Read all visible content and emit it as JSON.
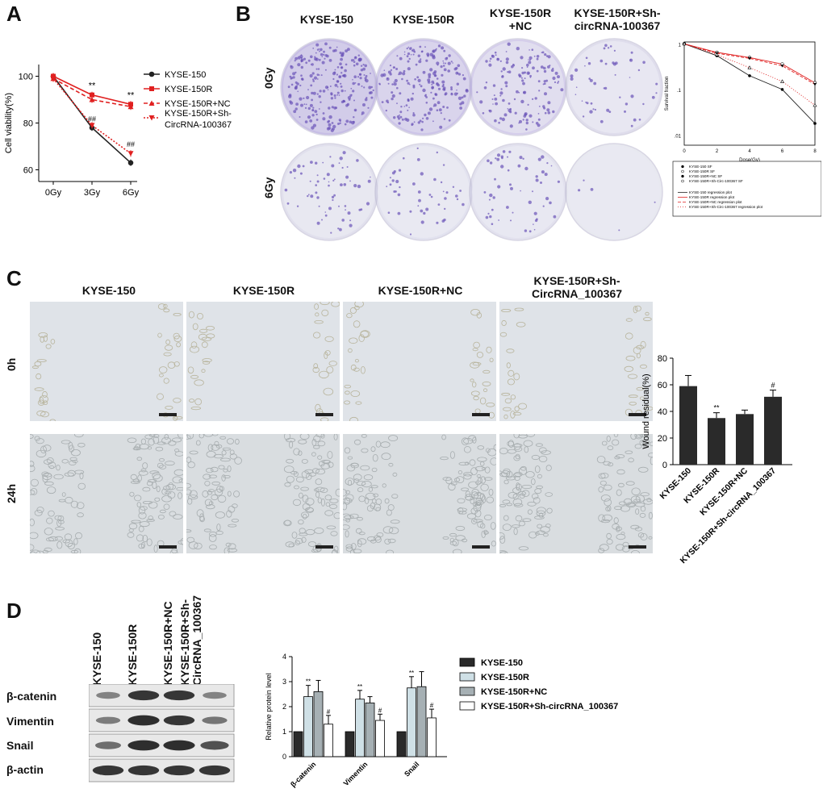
{
  "panels": {
    "a": "A",
    "b": "B",
    "c": "C",
    "d": "D"
  },
  "panel_a": {
    "chart_data": {
      "type": "line",
      "categories": [
        "0Gy",
        "3Gy",
        "6Gy"
      ],
      "ylabel": "Cell viability(%)",
      "ylim": [
        55,
        105
      ],
      "yticks": [
        "60",
        "80",
        "100"
      ],
      "series": [
        {
          "name": "KYSE-150",
          "values": [
            100,
            78,
            63
          ],
          "color": "#222222"
        },
        {
          "name": "KYSE-150R",
          "values": [
            100,
            92,
            88
          ],
          "color": "#e02020"
        },
        {
          "name": "KYSE-150R+NC",
          "values": [
            99,
            90,
            87
          ],
          "color": "#e02020"
        },
        {
          "name": "KYSE-150R+Sh-CircRNA-100367",
          "values": [
            99,
            79,
            67
          ],
          "color": "#e02020"
        }
      ],
      "annotations": [
        {
          "x": "3Gy",
          "text": "**"
        },
        {
          "x": "6Gy",
          "text": "**"
        },
        {
          "x": "3Gy",
          "text": "##"
        },
        {
          "x": "6Gy",
          "text": "##"
        }
      ],
      "legend": {
        "position": "right",
        "labels": [
          "KYSE-150",
          "KYSE-150R",
          "KYSE-150R+NC",
          "KYSE-150R+Sh-",
          "CircRNA-100367"
        ]
      }
    }
  },
  "panel_b": {
    "columns": [
      "KYSE-150",
      "KYSE-150R",
      "KYSE-150R",
      "+NC",
      "KYSE-150R+Sh-",
      "circRNA-100367"
    ],
    "rows": [
      "0Gy",
      "6Gy"
    ],
    "dishes": [
      {
        "density": 0.95,
        "tint": "#9b8ad0"
      },
      {
        "density": 0.8,
        "tint": "#a596d6"
      },
      {
        "density": 0.55,
        "tint": "#b3a7dc"
      },
      {
        "density": 0.2,
        "tint": "#c6c3de"
      },
      {
        "density": 0.25,
        "tint": "#c9c7e0"
      },
      {
        "density": 0.18,
        "tint": "#cccbe2"
      },
      {
        "density": 0.22,
        "tint": "#cbc9e1"
      },
      {
        "density": 0.02,
        "tint": "#d7d8e4"
      }
    ],
    "chart_data": {
      "type": "scatter",
      "xlabel": "Dose(Gy)",
      "ylabel": "Survival fraction",
      "x": [
        0,
        2,
        4,
        6,
        8
      ],
      "xticks": [
        "0",
        "2",
        "4",
        "6",
        "8"
      ],
      "yticks": [
        "1",
        ".1",
        ".01"
      ],
      "log_y": true,
      "ylim": [
        0.006,
        1.1
      ],
      "series": [
        {
          "name": "KYSE-150 SF",
          "values": [
            1,
            0.55,
            0.2,
            0.1,
            0.018
          ],
          "color": "#222222",
          "dash": ""
        },
        {
          "name": "KYSE-150R SF",
          "values": [
            1,
            0.65,
            0.5,
            0.36,
            0.14
          ],
          "color": "#e02020",
          "dash": ""
        },
        {
          "name": "KYSE-150R+NC SF",
          "values": [
            1,
            0.62,
            0.48,
            0.33,
            0.13
          ],
          "color": "#e02020",
          "dash": "4,2"
        },
        {
          "name": "KYSE-150R+Sh-Circ-100367 SF",
          "values": [
            1,
            0.58,
            0.3,
            0.15,
            0.045
          ],
          "color": "#e02020",
          "dash": "1,2"
        }
      ],
      "legend": {
        "position": "bottom",
        "markers": [
          "KYSE-150 SF",
          "KYSE-150R SF",
          "KYSE-150R+NC SF",
          "KYSE-150R+Sh-Circ-100367 SF"
        ],
        "lines": [
          "KYSE-150 regression plot",
          "KYSE-150R regression plot",
          "KYSE-150R+NC regression plot",
          "KYSE-150R+Sh-Circ-100367 regression plot"
        ]
      }
    }
  },
  "panel_c": {
    "columns": [
      "KYSE-150",
      "KYSE-150R",
      "KYSE-150R+NC",
      "KYSE-150R+Sh-",
      "CircRNA_100367"
    ],
    "rows": [
      "0h",
      "24h"
    ],
    "chart_data": {
      "type": "bar",
      "categories": [
        "KYSE-150",
        "KYSE-150R",
        "KYSE-150R+NC",
        "KYSE-150R+Sh-circRNA_100367"
      ],
      "values": [
        59,
        35,
        38,
        51
      ],
      "errors": [
        8,
        4,
        3,
        5
      ],
      "annotations": [
        "",
        "**",
        "",
        "#"
      ],
      "ylabel": "Wound residual(%)",
      "ylim": [
        0,
        80
      ],
      "yticks": [
        "0",
        "20",
        "40",
        "60",
        "80"
      ],
      "color": "#2a2a2a"
    }
  },
  "panel_d": {
    "lanes": [
      "KYSE-150",
      "KYSE-150R",
      "KYSE-150R+NC",
      "KYSE-150R+Sh-",
      "CircRNA_100367"
    ],
    "proteins": [
      "β-catenin",
      "Vimentin",
      "Snail",
      "β-actin"
    ],
    "band_intensity": [
      [
        0.35,
        0.9,
        0.9,
        0.35
      ],
      [
        0.4,
        0.95,
        0.9,
        0.45
      ],
      [
        0.5,
        0.95,
        0.95,
        0.7
      ],
      [
        0.9,
        0.9,
        0.9,
        0.9
      ]
    ],
    "chart_data": {
      "type": "bar",
      "categories": [
        "β-catenin",
        "Vimentin",
        "Snail"
      ],
      "series": [
        {
          "name": "KYSE-150",
          "values": [
            1,
            1,
            1
          ],
          "errors": [
            0,
            0,
            0
          ],
          "color": "#2a2a2a"
        },
        {
          "name": "KYSE-150R",
          "values": [
            2.4,
            2.3,
            2.75
          ],
          "errors": [
            0.45,
            0.35,
            0.45
          ],
          "color": "#cfe0e6"
        },
        {
          "name": "KYSE-150R+NC",
          "values": [
            2.6,
            2.15,
            2.8
          ],
          "errors": [
            0.45,
            0.25,
            0.6
          ],
          "color": "#a6b0b4"
        },
        {
          "name": "KYSE-150R+Sh-circRNA_100367",
          "values": [
            1.3,
            1.45,
            1.55
          ],
          "errors": [
            0.35,
            0.25,
            0.35
          ],
          "color": "#ffffff"
        }
      ],
      "annotations": [
        [
          "",
          "**",
          "",
          "#"
        ],
        [
          "",
          "**",
          "",
          "#"
        ],
        [
          "",
          "**",
          "",
          "#"
        ]
      ],
      "ylabel": "Relative protein level",
      "ylim": [
        0,
        4
      ],
      "yticks": [
        "0",
        "1",
        "2",
        "3",
        "4"
      ],
      "legend": {
        "position": "right"
      }
    }
  }
}
